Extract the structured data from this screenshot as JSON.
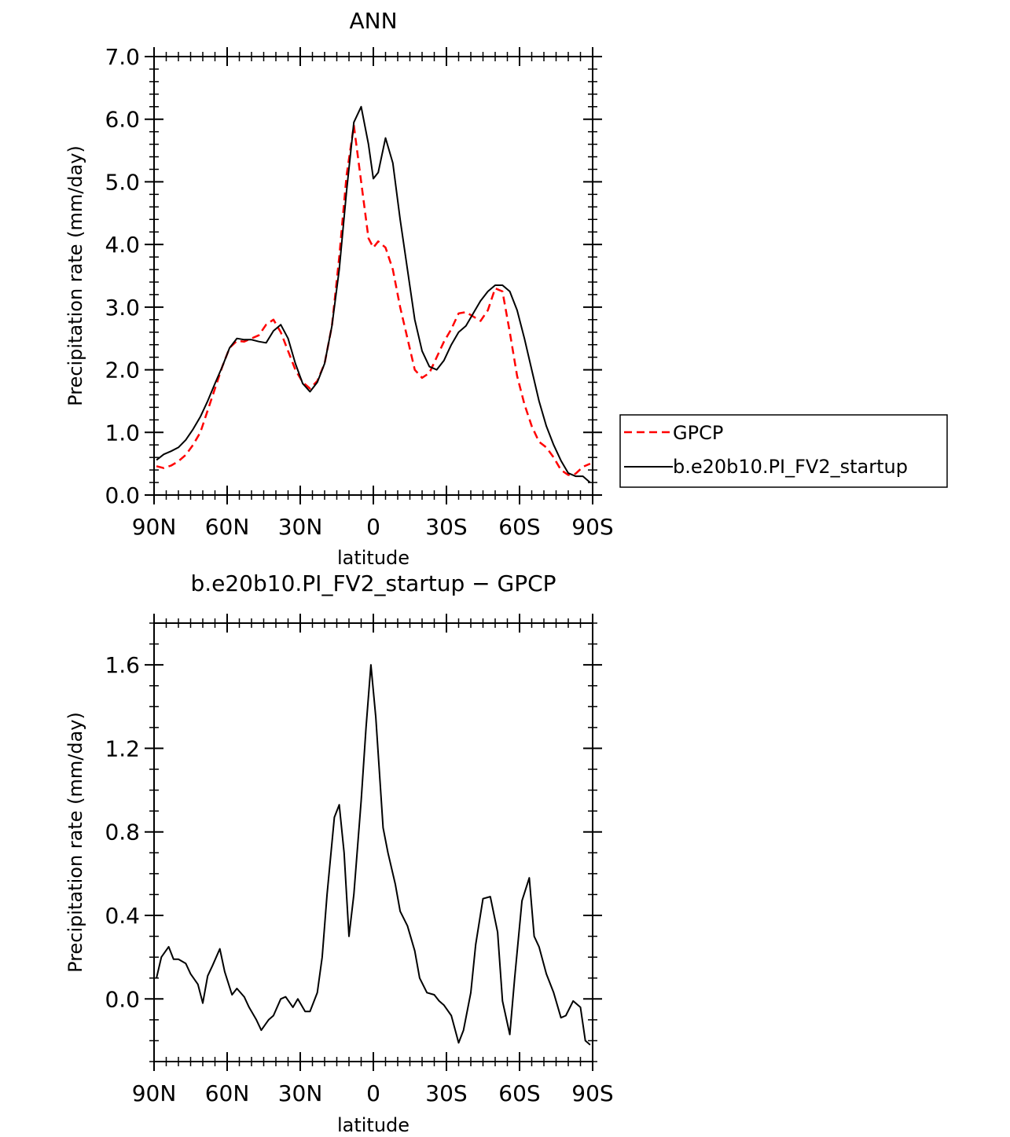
{
  "chart_data": [
    {
      "type": "line",
      "title": "ANN",
      "xlabel": "latitude",
      "ylabel": "Precipitation rate (mm/day)",
      "xlim": [
        -90,
        90
      ],
      "ylim": [
        0.0,
        7.0
      ],
      "xticks": [
        {
          "value": -90,
          "label": "90N"
        },
        {
          "value": -60,
          "label": "60N"
        },
        {
          "value": -30,
          "label": "30N"
        },
        {
          "value": 0,
          "label": "0"
        },
        {
          "value": 30,
          "label": "30S"
        },
        {
          "value": 60,
          "label": "60S"
        },
        {
          "value": 90,
          "label": "90S"
        }
      ],
      "yticks": [
        {
          "value": 0.0,
          "label": "0.0"
        },
        {
          "value": 1.0,
          "label": "1.0"
        },
        {
          "value": 2.0,
          "label": "2.0"
        },
        {
          "value": 3.0,
          "label": "3.0"
        },
        {
          "value": 4.0,
          "label": "4.0"
        },
        {
          "value": 5.0,
          "label": "5.0"
        },
        {
          "value": 6.0,
          "label": "6.0"
        },
        {
          "value": 7.0,
          "label": "7.0"
        }
      ],
      "grid": false,
      "legend_position": "right",
      "series": [
        {
          "name": "GPCP",
          "color": "#ff0000",
          "style": "dashed",
          "x": [
            -89,
            -86,
            -83,
            -80,
            -77,
            -74,
            -71,
            -68,
            -65,
            -62,
            -59,
            -56,
            -53,
            -50,
            -47,
            -44,
            -41,
            -38,
            -35,
            -32,
            -29,
            -26,
            -23,
            -20,
            -17,
            -14,
            -11,
            -8,
            -5,
            -2,
            0,
            2,
            5,
            8,
            11,
            14,
            17,
            20,
            23,
            26,
            29,
            32,
            35,
            38,
            41,
            44,
            47,
            50,
            53,
            56,
            59,
            62,
            65,
            68,
            71,
            74,
            77,
            80,
            83,
            86,
            89
          ],
          "values": [
            0.46,
            0.43,
            0.47,
            0.54,
            0.64,
            0.8,
            1.0,
            1.35,
            1.7,
            2.05,
            2.35,
            2.46,
            2.45,
            2.5,
            2.55,
            2.72,
            2.8,
            2.6,
            2.3,
            2.0,
            1.8,
            1.7,
            1.82,
            2.1,
            2.7,
            3.8,
            5.1,
            5.9,
            5.0,
            4.1,
            3.95,
            4.05,
            3.95,
            3.6,
            3.0,
            2.5,
            2.0,
            1.87,
            1.95,
            2.2,
            2.45,
            2.65,
            2.9,
            2.92,
            2.85,
            2.78,
            2.95,
            3.3,
            3.25,
            2.6,
            1.9,
            1.45,
            1.1,
            0.85,
            0.76,
            0.6,
            0.4,
            0.32,
            0.34,
            0.45,
            0.5
          ]
        },
        {
          "name": "b.e20b10.PI_FV2_startup",
          "color": "#000000",
          "style": "solid",
          "x": [
            -89,
            -86,
            -83,
            -80,
            -77,
            -74,
            -71,
            -68,
            -65,
            -62,
            -59,
            -56,
            -53,
            -50,
            -47,
            -44,
            -41,
            -38,
            -35,
            -32,
            -29,
            -26,
            -23,
            -20,
            -17,
            -14,
            -11,
            -8,
            -5,
            -2,
            0,
            2,
            5,
            8,
            11,
            14,
            17,
            20,
            23,
            26,
            29,
            32,
            35,
            38,
            41,
            44,
            47,
            50,
            53,
            56,
            59,
            62,
            65,
            68,
            71,
            74,
            77,
            80,
            83,
            86,
            89
          ],
          "values": [
            0.56,
            0.65,
            0.7,
            0.76,
            0.88,
            1.05,
            1.25,
            1.5,
            1.78,
            2.05,
            2.35,
            2.5,
            2.48,
            2.48,
            2.45,
            2.43,
            2.62,
            2.72,
            2.5,
            2.1,
            1.78,
            1.65,
            1.8,
            2.1,
            2.7,
            3.6,
            4.85,
            5.95,
            6.2,
            5.6,
            5.05,
            5.15,
            5.7,
            5.3,
            4.4,
            3.6,
            2.8,
            2.3,
            2.05,
            2.0,
            2.15,
            2.4,
            2.6,
            2.7,
            2.9,
            3.1,
            3.25,
            3.35,
            3.35,
            3.25,
            2.95,
            2.5,
            2.0,
            1.5,
            1.1,
            0.8,
            0.55,
            0.35,
            0.3,
            0.3,
            0.2
          ]
        }
      ]
    },
    {
      "type": "line",
      "title": "b.e20b10.PI_FV2_startup − GPCP",
      "xlabel": "latitude",
      "ylabel": "Precipitation rate (mm/day)",
      "xlim": [
        -90,
        90
      ],
      "ylim": [
        -0.3,
        1.8
      ],
      "xticks": [
        {
          "value": -90,
          "label": "90N"
        },
        {
          "value": -60,
          "label": "60N"
        },
        {
          "value": -30,
          "label": "30N"
        },
        {
          "value": 0,
          "label": "0"
        },
        {
          "value": 30,
          "label": "30S"
        },
        {
          "value": 60,
          "label": "60S"
        },
        {
          "value": 90,
          "label": "90S"
        }
      ],
      "yticks": [
        {
          "value": 0.0,
          "label": "0.0"
        },
        {
          "value": 0.4,
          "label": "0.4"
        },
        {
          "value": 0.8,
          "label": "0.8"
        },
        {
          "value": 1.2,
          "label": "1.2"
        },
        {
          "value": 1.6,
          "label": "1.6"
        }
      ],
      "grid": false,
      "series": [
        {
          "color": "#000000",
          "style": "solid",
          "x": [
            -89,
            -87,
            -84,
            -82,
            -80,
            -77,
            -75,
            -72,
            -70,
            -68,
            -66,
            -63,
            -61,
            -58,
            -56,
            -53,
            -51,
            -48,
            -46,
            -43,
            -41,
            -38,
            -36,
            -33,
            -31,
            -28,
            -26,
            -23,
            -21,
            -19,
            -16,
            -14,
            -12,
            -10,
            -8,
            -5,
            -3,
            -1,
            1,
            4,
            6,
            9,
            11,
            14,
            17,
            19,
            22,
            25,
            27,
            29,
            32,
            35,
            37,
            40,
            42,
            45,
            48,
            51,
            53,
            56,
            58,
            61,
            64,
            66,
            68,
            71,
            74,
            77,
            79,
            82,
            85,
            87,
            89
          ],
          "values": [
            0.1,
            0.2,
            0.25,
            0.19,
            0.19,
            0.17,
            0.12,
            0.07,
            -0.02,
            0.11,
            0.16,
            0.24,
            0.13,
            0.02,
            0.05,
            0.01,
            -0.04,
            -0.1,
            -0.15,
            -0.1,
            -0.08,
            0.0,
            0.01,
            -0.04,
            0.0,
            -0.06,
            -0.06,
            0.03,
            0.2,
            0.5,
            0.87,
            0.93,
            0.7,
            0.3,
            0.5,
            0.95,
            1.3,
            1.6,
            1.35,
            0.82,
            0.7,
            0.55,
            0.42,
            0.35,
            0.23,
            0.1,
            0.03,
            0.02,
            -0.01,
            -0.03,
            -0.08,
            -0.21,
            -0.15,
            0.03,
            0.26,
            0.48,
            0.49,
            0.32,
            -0.01,
            -0.17,
            0.1,
            0.47,
            0.58,
            0.3,
            0.25,
            0.12,
            0.03,
            -0.09,
            -0.08,
            -0.01,
            -0.04,
            -0.2,
            -0.22
          ]
        }
      ]
    }
  ],
  "panels": [
    {
      "title": "ANN",
      "xlabel": "latitude",
      "ylabel": "Precipitation rate (mm/day)",
      "legend": [
        {
          "label": "GPCP",
          "color": "#ff0000",
          "style": "dashed"
        },
        {
          "label": "b.e20b10.PI_FV2_startup",
          "color": "#000000",
          "style": "solid"
        }
      ]
    },
    {
      "title": "b.e20b10.PI_FV2_startup − GPCP",
      "xlabel": "latitude",
      "ylabel": "Precipitation rate (mm/day)"
    }
  ]
}
